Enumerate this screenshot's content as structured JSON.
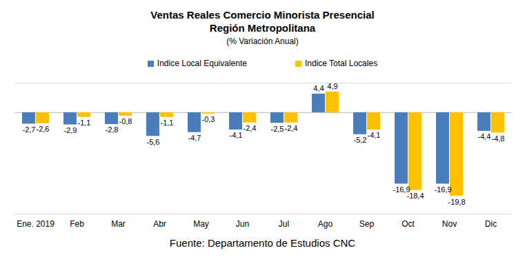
{
  "chart_data": {
    "type": "bar",
    "title": [
      "Ventas Reales Comercio Minorista Presencial",
      "Región Metropolitana"
    ],
    "subtitle": "(% Variación Anual)",
    "source": "Fuente: Departamento de Estudios CNC",
    "categories": [
      "Ene. 2019",
      "Feb",
      "Mar",
      "Abr",
      "May",
      "Jun",
      "Jul",
      "Ago",
      "Sep",
      "Oct",
      "Nov",
      "Dic"
    ],
    "series": [
      {
        "name": "Indice Local Equivalente",
        "color": "#4a7ebb",
        "values": [
          -2.7,
          -2.9,
          -2.8,
          -5.6,
          -4.7,
          -4.1,
          -2.5,
          4.4,
          -5.2,
          -16.9,
          -16.9,
          -4.4
        ],
        "value_labels": [
          "-2,7",
          "-2,9",
          "-2,8",
          "-5,6",
          "-4,7",
          "-4,1",
          "-2,5",
          "4,4",
          "-5,2",
          "-16,9",
          "-16,9",
          "-4,4"
        ]
      },
      {
        "name": "Indice Total Locales",
        "color": "#ffc000",
        "values": [
          -2.6,
          -1.1,
          -0.8,
          -1.1,
          -0.3,
          -2.4,
          -2.4,
          4.9,
          -4.1,
          -18.4,
          -19.8,
          -4.8
        ],
        "value_labels": [
          "-2,6",
          "-1,1",
          "-0,8",
          "-1,1",
          "-0,3",
          "-2,4",
          "-2,4",
          "4,9",
          "-4,1",
          "-18,4",
          "-19,8",
          "-4,8"
        ]
      }
    ],
    "ylim": [
      -24,
      7
    ],
    "yticks": [
      0
    ],
    "legend": "top",
    "data_labels": true,
    "tick_labels": "x"
  }
}
